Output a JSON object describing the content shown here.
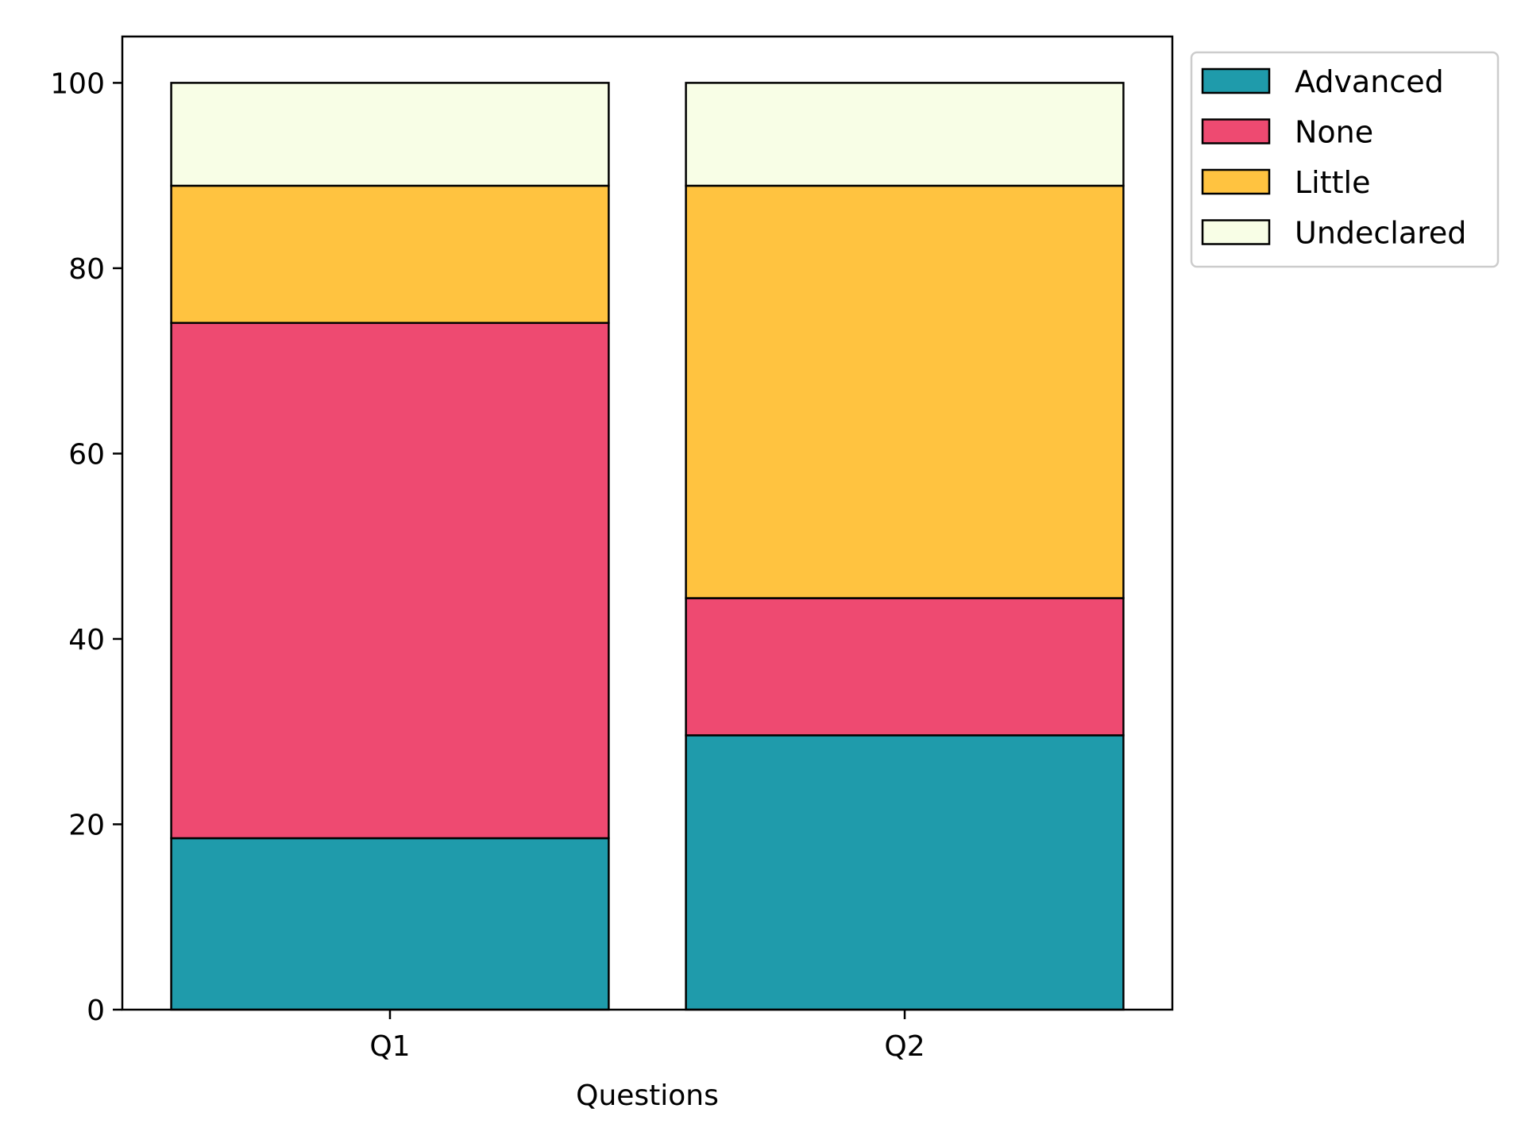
{
  "chart_data": {
    "type": "bar",
    "stacked": true,
    "categories": [
      "Q1",
      "Q2"
    ],
    "series": [
      {
        "name": "Advanced",
        "color": "#1f9bab",
        "values": [
          18.5,
          29.6
        ]
      },
      {
        "name": "None",
        "color": "#ee4a71",
        "values": [
          55.6,
          14.8
        ]
      },
      {
        "name": "Little",
        "color": "#ffc340",
        "values": [
          14.8,
          44.5
        ]
      },
      {
        "name": "Undeclared",
        "color": "#f8fee6",
        "values": [
          11.1,
          11.1
        ]
      }
    ],
    "title": "",
    "xlabel": "Questions",
    "ylabel": "",
    "ylim": [
      0,
      105
    ],
    "yticks": [
      0,
      20,
      40,
      60,
      80,
      100
    ],
    "grid": false,
    "legend_position": "upper right, outside plot"
  }
}
